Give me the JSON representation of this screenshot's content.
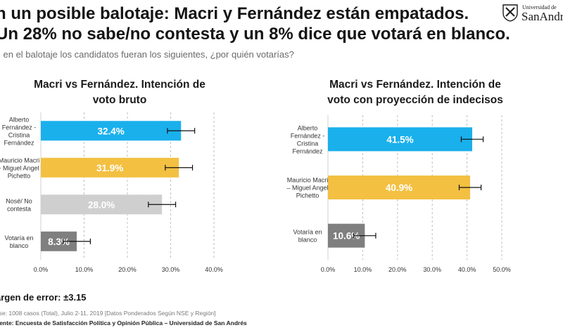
{
  "header": {
    "title_line1": "n un posible balotaje: Macri y Fernández están empatados.",
    "title_line2": "Un 28% no sabe/no contesta y un 8% dice que votará en blanco.",
    "question": "i en el balotaje los candidatos fueran los siguientes, ¿por quién votarías?"
  },
  "logo": {
    "line1": "Universidad de",
    "line2": "SanAndrés"
  },
  "footer": {
    "margin": "argen de error: ±3.15",
    "base": "ase: 1008 casos (Total), Julio 2-11, 2019 [Datos Ponderados Según NSE y Región]",
    "source": "uente: Encuesta de Satisfacción Política y Opinión Pública – Universidad de San Andrés"
  },
  "colors": {
    "fernandez": "#1ab0ec",
    "macri": "#f3c042",
    "nose": "#cfcfcf",
    "blanco": "#7f7f7f",
    "grid": "#bfbfbf"
  },
  "chart_data": [
    {
      "type": "bar",
      "orientation": "horizontal",
      "title": "Macri vs Fernández. Intención de voto bruto",
      "title_lines": [
        "Macri vs Fernández. Intención de",
        "voto bruto"
      ],
      "categories": [
        [
          "Alberto",
          "Fernández -",
          "Cristina",
          "Fernández"
        ],
        [
          "Mauricio Macri",
          "- Miguel Angel",
          "Pichetto"
        ],
        [
          "Nosé/ No",
          "contesta"
        ],
        [
          "Votaría en",
          "blanco"
        ]
      ],
      "values": [
        32.4,
        31.9,
        28.0,
        8.3
      ],
      "value_labels": [
        "32.4%",
        "31.9%",
        "28.0%",
        "8.3%"
      ],
      "error_margin": 3.15,
      "bar_colors": [
        "#1ab0ec",
        "#f3c042",
        "#cfcfcf",
        "#7f7f7f"
      ],
      "xlim": [
        0,
        40
      ],
      "xticks": [
        0,
        10,
        20,
        30,
        40
      ],
      "xtick_labels": [
        "0.0%",
        "10.0%",
        "20.0%",
        "30.0%",
        "40.0%"
      ],
      "grid": true
    },
    {
      "type": "bar",
      "orientation": "horizontal",
      "title": "Macri vs Fernández. Intención de voto con proyección de indecisos",
      "title_lines": [
        "Macri vs Fernández. Intención de",
        "voto con proyección de indecisos"
      ],
      "categories": [
        [
          "Alberto",
          "Fernández -",
          "Cristina",
          "Fernández"
        ],
        [
          "Mauricio Macri",
          "– Miguel Angel",
          "Pichetto"
        ],
        [
          "Votaría en",
          "blanco"
        ]
      ],
      "values": [
        41.5,
        40.9,
        10.6
      ],
      "value_labels": [
        "41.5%",
        "40.9%",
        "10.6%"
      ],
      "error_margin": 3.15,
      "bar_colors": [
        "#1ab0ec",
        "#f3c042",
        "#7f7f7f"
      ],
      "xlim": [
        0,
        50
      ],
      "xticks": [
        0,
        10,
        20,
        30,
        40,
        50
      ],
      "xtick_labels": [
        "0.0%",
        "10.0%",
        "20.0%",
        "30.0%",
        "40.0%",
        "50.0%"
      ],
      "grid": true
    }
  ]
}
